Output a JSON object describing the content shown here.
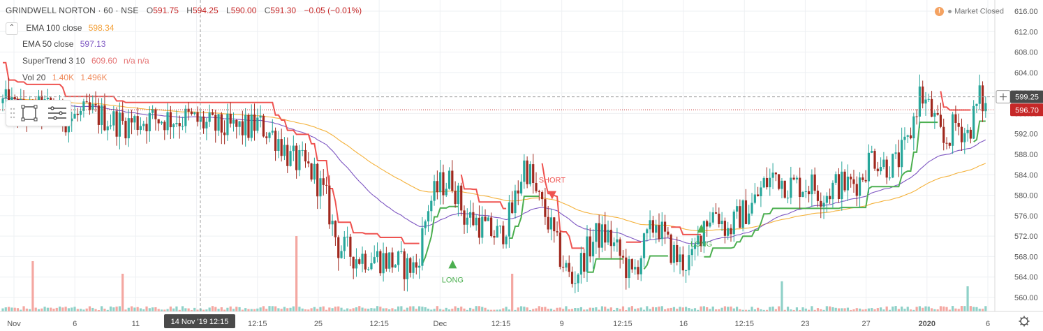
{
  "header": {
    "symbol": "GRINDWELL NORTON · 60 · NSE",
    "open_label": "O",
    "open": "591.75",
    "high_label": "H",
    "high": "594.25",
    "low_label": "L",
    "low": "590.00",
    "close_label": "C",
    "close": "591.30",
    "change": "−0.05 (−0.01%)"
  },
  "market_status": {
    "icon": "!",
    "label": "Market Closed"
  },
  "legend": [
    {
      "name": "EMA 100 close",
      "value": "598.34",
      "color": "#f4a23c"
    },
    {
      "name": "EMA 50 close",
      "value": "597.13",
      "color": "#7e57c2"
    },
    {
      "name": "SuperTrend 3 10",
      "value": "609.60",
      "extra": "n/a  n/a",
      "color": "#e57373"
    },
    {
      "name": "Vol 20",
      "value": "1.40K",
      "extra": "1.496K",
      "color": "#ef8a5a"
    }
  ],
  "price_badges": {
    "crosshair": "599.25",
    "last": "596.70"
  },
  "crosshair_time": {
    "date": "14 Nov '19",
    "time": "12:15"
  },
  "colors": {
    "up": "#26a69a",
    "down": "#a0281e",
    "supertrend_down": "#ef5350",
    "supertrend_up": "#4caf50",
    "ema100": "#f4b23c",
    "ema50": "#7e57c2",
    "vol_up": "#8fd1c8",
    "vol_down": "#f4a7a1",
    "grid": "#eef0f3"
  },
  "chart_data": {
    "type": "candlestick",
    "title": "GRINDWELL NORTON · 60 · NSE",
    "y_ticks": [
      "616.00",
      "612.00",
      "608.00",
      "604.00",
      "600.00",
      "596.00",
      "592.00",
      "588.00",
      "584.00",
      "580.00",
      "576.00",
      "572.00",
      "568.00",
      "564.00",
      "560.00"
    ],
    "ylim": [
      558,
      617
    ],
    "x_tick_labels": [
      "Nov",
      "6",
      "11",
      "8",
      "12:15",
      "25",
      "12:15",
      "Dec",
      "12:15",
      "9",
      "12:15",
      "16",
      "12:15",
      "23",
      "27",
      "2020",
      "6"
    ],
    "n_bars": 216,
    "anchors": [
      [
        0,
        598
      ],
      [
        8,
        596
      ],
      [
        15,
        597
      ],
      [
        22,
        595
      ],
      [
        30,
        596
      ],
      [
        40,
        594
      ],
      [
        50,
        595
      ],
      [
        62,
        595
      ],
      [
        72,
        593
      ],
      [
        82,
        593
      ],
      [
        85,
        594
      ],
      [
        92,
        591
      ],
      [
        96,
        587
      ],
      [
        100,
        586
      ],
      [
        104,
        584
      ],
      [
        108,
        579
      ],
      [
        110,
        574
      ],
      [
        112,
        570
      ],
      [
        118,
        568
      ],
      [
        124,
        568
      ],
      [
        130,
        567
      ],
      [
        135,
        566
      ],
      [
        138,
        566
      ],
      [
        142,
        578
      ],
      [
        146,
        582
      ],
      [
        150,
        583
      ],
      [
        154,
        576
      ],
      [
        158,
        575
      ],
      [
        162,
        573
      ],
      [
        166,
        572
      ],
      [
        170,
        577
      ],
      [
        174,
        586
      ],
      [
        176,
        584
      ],
      [
        178,
        580
      ],
      [
        182,
        575
      ],
      [
        186,
        568
      ],
      [
        190,
        563
      ],
      [
        194,
        568
      ],
      [
        198,
        572
      ],
      [
        202,
        572
      ],
      [
        206,
        568
      ],
      [
        210,
        564
      ],
      [
        214,
        570
      ],
      [
        218,
        575
      ],
      [
        222,
        570
      ],
      [
        226,
        567
      ],
      [
        230,
        567
      ],
      [
        234,
        575
      ],
      [
        238,
        577
      ],
      [
        242,
        573
      ],
      [
        246,
        576
      ],
      [
        250,
        578
      ],
      [
        254,
        582
      ],
      [
        258,
        584
      ],
      [
        262,
        582
      ],
      [
        266,
        582
      ],
      [
        270,
        582
      ],
      [
        274,
        580
      ],
      [
        278,
        582
      ],
      [
        282,
        582
      ],
      [
        286,
        583
      ],
      [
        290,
        588
      ],
      [
        294,
        586
      ],
      [
        298,
        586
      ],
      [
        302,
        590
      ],
      [
        306,
        600
      ],
      [
        310,
        596
      ],
      [
        314,
        590
      ],
      [
        318,
        594
      ],
      [
        322,
        592
      ],
      [
        326,
        599
      ],
      [
        328,
        597
      ]
    ],
    "n_plot_points": 329,
    "volume_spikes": [
      [
        10,
        20
      ],
      [
        40,
        15
      ],
      [
        98,
        30
      ],
      [
        170,
        15
      ],
      [
        260,
        12
      ],
      [
        322,
        10
      ]
    ],
    "signals": [
      {
        "type": "LONG",
        "price": 566.5
      },
      {
        "type": "SHORT",
        "price": 580
      },
      {
        "type": "LONG",
        "price": 573.5
      }
    ]
  }
}
